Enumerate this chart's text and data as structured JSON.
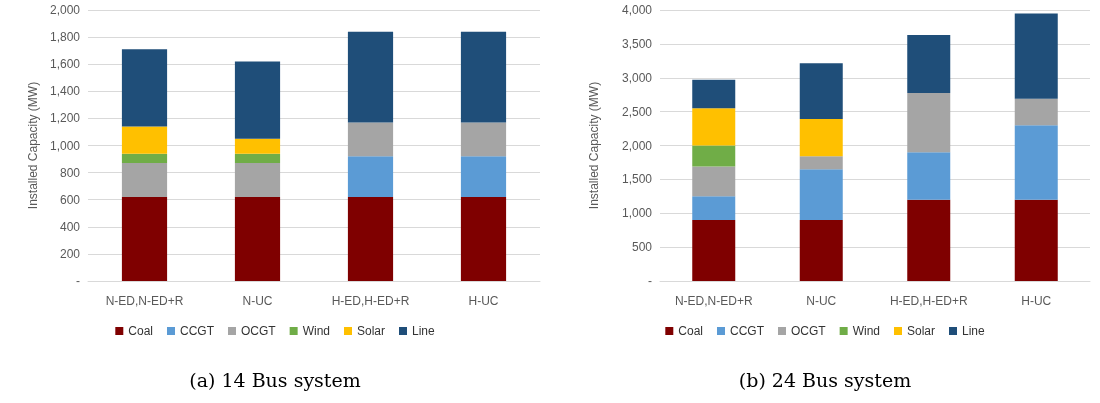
{
  "chart_data": [
    {
      "type": "bar",
      "title": "(a) 14 Bus system",
      "ylabel": "Installed Capacity (MW)",
      "categories": [
        "N-ED,N-ED+R",
        "N-UC",
        "H-ED,H-ED+R",
        "H-UC"
      ],
      "stacked": true,
      "series": [
        {
          "name": "Coal",
          "color": "#7f0000",
          "values": [
            620,
            620,
            620,
            620
          ]
        },
        {
          "name": "CCGT",
          "color": "#5b9bd5",
          "values": [
            0,
            0,
            300,
            300
          ]
        },
        {
          "name": "OCGT",
          "color": "#a5a5a5",
          "values": [
            250,
            250,
            250,
            250
          ]
        },
        {
          "name": "Wind",
          "color": "#70ad47",
          "values": [
            70,
            70,
            0,
            0
          ]
        },
        {
          "name": "Solar",
          "color": "#ffc000",
          "values": [
            200,
            110,
            0,
            0
          ]
        },
        {
          "name": "Line",
          "color": "#1f4e79",
          "values": [
            570,
            570,
            670,
            670
          ]
        }
      ],
      "ylim": [
        0,
        2000
      ],
      "yticks": [
        {
          "value": 0,
          "label": "-"
        },
        200,
        400,
        600,
        800,
        {
          "value": 1000,
          "label": "1,000"
        },
        {
          "value": 1200,
          "label": "1,200"
        },
        {
          "value": 1400,
          "label": "1,400"
        },
        {
          "value": 1600,
          "label": "1,600"
        },
        {
          "value": 1800,
          "label": "1,800"
        },
        {
          "value": 2000,
          "label": "2,000"
        }
      ],
      "grid": "y",
      "legend": "bottom"
    },
    {
      "type": "bar",
      "title": "(b) 24 Bus system",
      "ylabel": "Installed Capacity (MW)",
      "categories": [
        "N-ED,N-ED+R",
        "N-UC",
        "H-ED,H-ED+R",
        "H-UC"
      ],
      "stacked": true,
      "series": [
        {
          "name": "Coal",
          "color": "#7f0000",
          "values": [
            900,
            900,
            1200,
            1200
          ]
        },
        {
          "name": "CCGT",
          "color": "#5b9bd5",
          "values": [
            350,
            750,
            700,
            1100
          ]
        },
        {
          "name": "OCGT",
          "color": "#a5a5a5",
          "values": [
            440,
            190,
            875,
            390
          ]
        },
        {
          "name": "Wind",
          "color": "#70ad47",
          "values": [
            310,
            0,
            0,
            0
          ]
        },
        {
          "name": "Solar",
          "color": "#ffc000",
          "values": [
            550,
            550,
            0,
            0
          ]
        },
        {
          "name": "Line",
          "color": "#1f4e79",
          "values": [
            420,
            825,
            855,
            1260
          ]
        }
      ],
      "ylim": [
        0,
        4000
      ],
      "yticks": [
        {
          "value": 0,
          "label": "-"
        },
        500,
        {
          "value": 1000,
          "label": "1,000"
        },
        {
          "value": 1500,
          "label": "1,500"
        },
        {
          "value": 2000,
          "label": "2,000"
        },
        {
          "value": 2500,
          "label": "2,500"
        },
        {
          "value": 3000,
          "label": "3,000"
        },
        {
          "value": 3500,
          "label": "3,500"
        },
        {
          "value": 4000,
          "label": "4,000"
        }
      ],
      "grid": "y",
      "legend": "bottom"
    }
  ]
}
